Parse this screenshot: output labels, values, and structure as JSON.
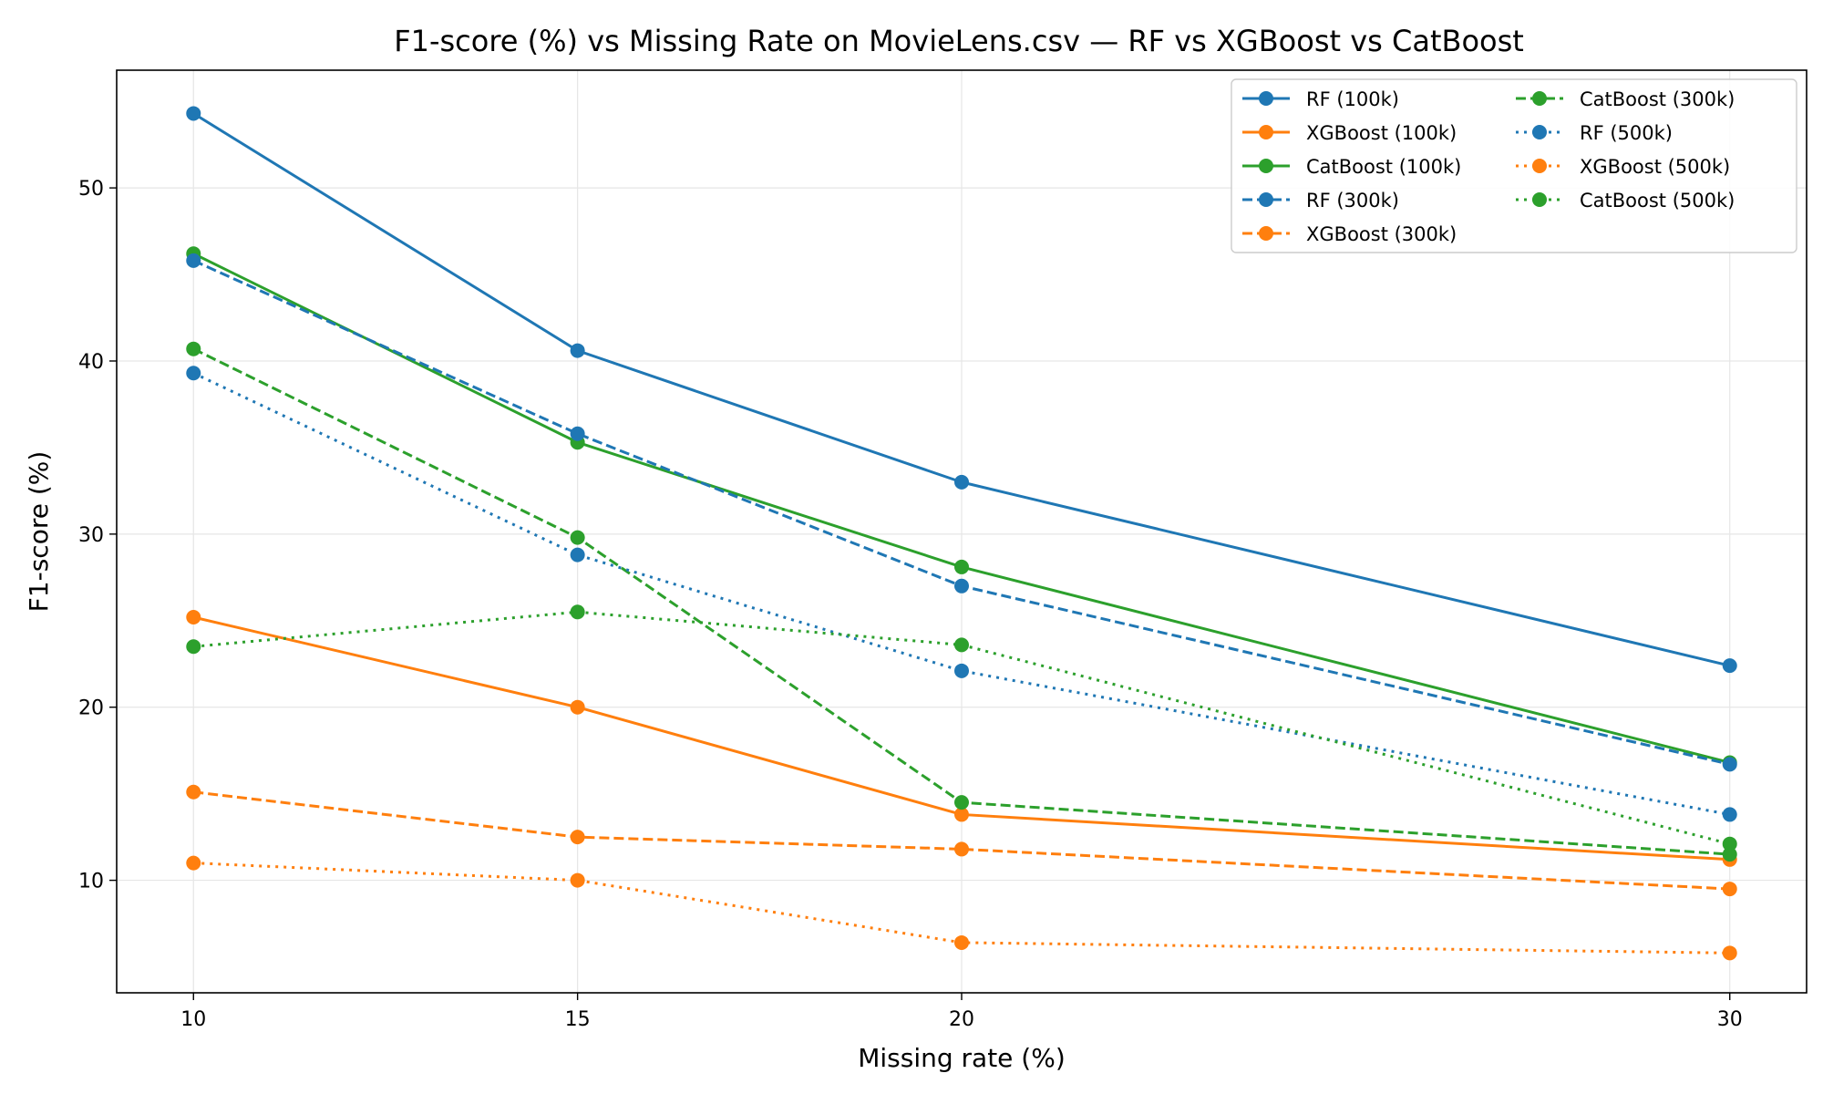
{
  "chart_data": {
    "type": "line",
    "title": "F1-score (%) vs Missing Rate on MovieLens.csv — RF vs XGBoost vs CatBoost",
    "xlabel": "Missing rate (%)",
    "ylabel": "F1-score (%)",
    "x": [
      10,
      15,
      20,
      30
    ],
    "x_ticks": [
      10,
      15,
      20,
      30
    ],
    "y_ticks": [
      10,
      20,
      30,
      40,
      50
    ],
    "xlim": [
      9,
      31
    ],
    "ylim": [
      3.5,
      56.8
    ],
    "grid": true,
    "legend": {
      "placement": "top-right",
      "columns": 2
    },
    "series": [
      {
        "name": "RF (100k)",
        "color": "#1f77b4",
        "linestyle": "solid",
        "values": [
          54.3,
          40.6,
          33.0,
          22.4
        ]
      },
      {
        "name": "XGBoost (100k)",
        "color": "#ff7f0e",
        "linestyle": "solid",
        "values": [
          25.2,
          20.0,
          13.8,
          11.2
        ]
      },
      {
        "name": "CatBoost (100k)",
        "color": "#2ca02c",
        "linestyle": "solid",
        "values": [
          46.2,
          35.3,
          28.1,
          16.8
        ]
      },
      {
        "name": "RF (300k)",
        "color": "#1f77b4",
        "linestyle": "dashed",
        "values": [
          45.8,
          35.8,
          27.0,
          16.7
        ]
      },
      {
        "name": "XGBoost (300k)",
        "color": "#ff7f0e",
        "linestyle": "dashed",
        "values": [
          15.1,
          12.5,
          11.8,
          9.5
        ]
      },
      {
        "name": "CatBoost (300k)",
        "color": "#2ca02c",
        "linestyle": "dashed",
        "values": [
          40.7,
          29.8,
          14.5,
          11.5
        ]
      },
      {
        "name": "RF (500k)",
        "color": "#1f77b4",
        "linestyle": "dotted",
        "values": [
          39.3,
          28.8,
          22.1,
          13.8
        ]
      },
      {
        "name": "XGBoost (500k)",
        "color": "#ff7f0e",
        "linestyle": "dotted",
        "values": [
          11.0,
          10.0,
          6.4,
          5.8
        ]
      },
      {
        "name": "CatBoost (500k)",
        "color": "#2ca02c",
        "linestyle": "dotted",
        "values": [
          23.5,
          25.5,
          23.6,
          12.1
        ]
      }
    ]
  }
}
